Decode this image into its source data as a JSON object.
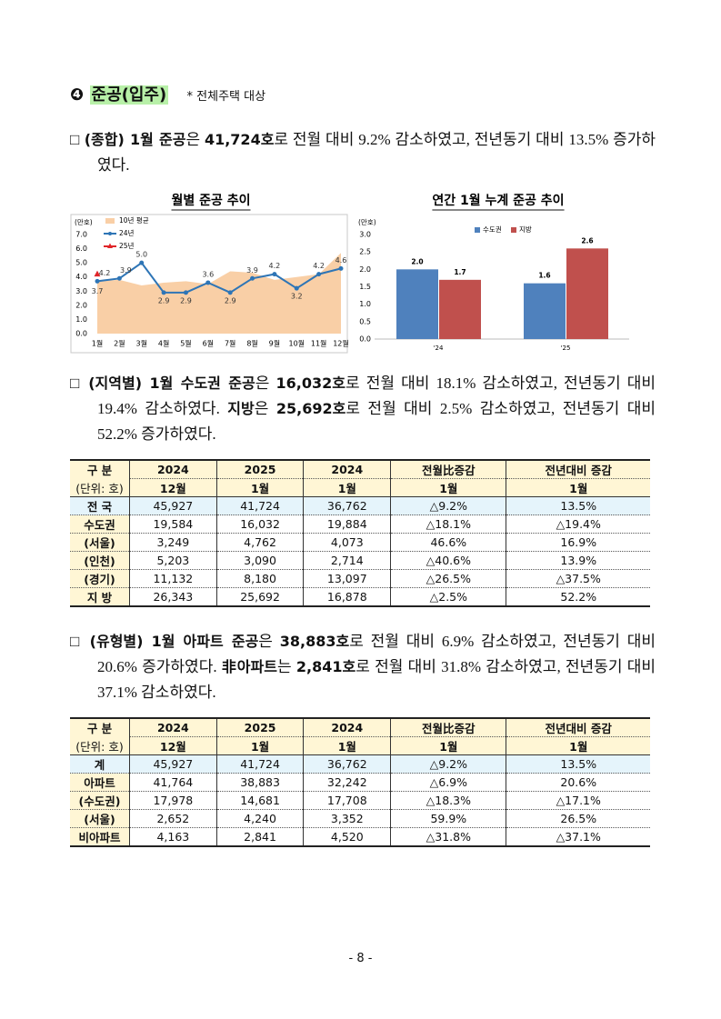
{
  "header": {
    "number": "❹",
    "title": "준공(입주)",
    "note": "* 전체주택 대상"
  },
  "paragraphs": [
    {
      "runs": [
        {
          "text": "□ ",
          "bold": false
        },
        {
          "text": "(종합) 1월 준공",
          "bold": true
        },
        {
          "text": "은 ",
          "bold": false
        },
        {
          "text": "41,724호",
          "bold": true
        },
        {
          "text": "로 전월 대비 9.2% 감소하였고, 전년동기 대비 13.5% 증가하였다.",
          "bold": false
        }
      ]
    },
    {
      "runs": [
        {
          "text": "□ ",
          "bold": false
        },
        {
          "text": "(지역별) 1월 수도권 준공",
          "bold": true
        },
        {
          "text": "은 ",
          "bold": false
        },
        {
          "text": "16,032호",
          "bold": true
        },
        {
          "text": "로 전월 대비 18.1% 감소하였고, 전년동기 대비 19.4% 감소하였다. ",
          "bold": false
        },
        {
          "text": "지방",
          "bold": true
        },
        {
          "text": "은 ",
          "bold": false
        },
        {
          "text": "25,692호",
          "bold": true
        },
        {
          "text": "로 전월 대비 2.5% 감소하였고, 전년동기 대비 52.2% 증가하였다.",
          "bold": false
        }
      ]
    },
    {
      "runs": [
        {
          "text": "□ ",
          "bold": false
        },
        {
          "text": "(유형별) 1월 아파트 준공",
          "bold": true
        },
        {
          "text": "은 ",
          "bold": false
        },
        {
          "text": "38,883호",
          "bold": true
        },
        {
          "text": "로 전월 대비 6.9% 감소하였고, 전년동기 대비 20.6% 증가하였다. ",
          "bold": false
        },
        {
          "text": "非아파트",
          "bold": true
        },
        {
          "text": "는 ",
          "bold": false
        },
        {
          "text": "2,841호",
          "bold": true
        },
        {
          "text": "로 전월 대비 31.8% 감소하였고, 전년동기 대비 37.1% 감소하였다.",
          "bold": false
        }
      ]
    }
  ],
  "chart_data": [
    {
      "type": "line",
      "title": "월별 준공 추이",
      "y_label": "(만호)",
      "categories": [
        "1월",
        "2월",
        "3월",
        "4월",
        "5월",
        "6월",
        "7월",
        "8월",
        "9월",
        "10월",
        "11월",
        "12월"
      ],
      "ylim": [
        0,
        7
      ],
      "yticks": [
        {
          "value": 0,
          "label": "0.0"
        },
        {
          "value": 1,
          "label": "1.0"
        },
        {
          "value": 2,
          "label": "2.0"
        },
        {
          "value": 3,
          "label": "3.0"
        },
        {
          "value": 4,
          "label": "4.0"
        },
        {
          "value": 5,
          "label": "5.0"
        },
        {
          "value": 6,
          "label": "6.0"
        },
        {
          "value": 7,
          "label": "7.0"
        }
      ],
      "series": [
        {
          "name": "10년 평균",
          "color": "#f9cfa6",
          "kind": "area",
          "values": [
            3.7,
            3.8,
            3.4,
            3.6,
            3.7,
            3.5,
            4.4,
            4.3,
            3.8,
            4.0,
            4.2,
            5.7
          ]
        },
        {
          "name": "24년",
          "color": "#2e75b6",
          "kind": "line",
          "marker": "circle",
          "values": [
            3.7,
            3.9,
            5.0,
            2.9,
            2.9,
            3.6,
            2.9,
            3.9,
            4.2,
            3.2,
            4.2,
            4.6
          ],
          "value_labels": [
            "3.7",
            "3.9",
            "5.0",
            "2.9",
            "2.9",
            "3.6",
            "2.9",
            "3.9",
            "4.2",
            "3.2",
            "4.2",
            "4.6"
          ]
        },
        {
          "name": "25년",
          "color": "#e0262a",
          "kind": "line",
          "marker": "triangle",
          "values": [
            4.2,
            null,
            null,
            null,
            null,
            null,
            null,
            null,
            null,
            null,
            null,
            null
          ],
          "value_labels": [
            "4.2",
            null,
            null,
            null,
            null,
            null,
            null,
            null,
            null,
            null,
            null,
            null
          ]
        }
      ]
    },
    {
      "type": "bar",
      "title": "연간 1월 누계 준공 추이",
      "y_label": "(만호)",
      "categories": [
        "'24",
        "'25"
      ],
      "ylim": [
        0,
        3
      ],
      "yticks": [
        {
          "value": 0,
          "label": "0.0"
        },
        {
          "value": 0.5,
          "label": "0.5"
        },
        {
          "value": 1,
          "label": "1.0"
        },
        {
          "value": 1.5,
          "label": "1.5"
        },
        {
          "value": 2,
          "label": "2.0"
        },
        {
          "value": 2.5,
          "label": "2.5"
        },
        {
          "value": 3,
          "label": "3.0"
        }
      ],
      "series": [
        {
          "name": "수도권",
          "color": "#4f81bd",
          "values": [
            2.0,
            1.6
          ],
          "value_labels": [
            "2.0",
            "1.6"
          ]
        },
        {
          "name": "지방",
          "color": "#c0504d",
          "values": [
            1.7,
            2.6
          ],
          "value_labels": [
            "1.7",
            "2.6"
          ]
        }
      ]
    }
  ],
  "tables": [
    {
      "header": [
        [
          "구 분",
          "2024",
          "2025",
          "2024",
          "전월比증감",
          "전년대비 증감"
        ],
        [
          "(단위: 호)",
          "12월",
          "1월",
          "1월",
          "1월",
          "1월"
        ]
      ],
      "rows": [
        [
          "전 국",
          "45,927",
          "41,724",
          "36,762",
          "△9.2%",
          "13.5%"
        ],
        [
          "수도권",
          "19,584",
          "16,032",
          "19,884",
          "△18.1%",
          "△19.4%"
        ],
        [
          "(서울)",
          "3,249",
          "4,762",
          "4,073",
          "46.6%",
          "16.9%"
        ],
        [
          "(인천)",
          "5,203",
          "3,090",
          "2,714",
          "△40.6%",
          "13.9%"
        ],
        [
          "(경기)",
          "11,132",
          "8,180",
          "13,097",
          "△26.5%",
          "△37.5%"
        ],
        [
          "지 방",
          "26,343",
          "25,692",
          "16,878",
          "△2.5%",
          "52.2%"
        ]
      ]
    },
    {
      "header": [
        [
          "구 분",
          "2024",
          "2025",
          "2024",
          "전월比증감",
          "전년대비 증감"
        ],
        [
          "(단위: 호)",
          "12월",
          "1월",
          "1월",
          "1월",
          "1월"
        ]
      ],
      "rows": [
        [
          "계",
          "45,927",
          "41,724",
          "36,762",
          "△9.2%",
          "13.5%"
        ],
        [
          "아파트",
          "41,764",
          "38,883",
          "32,242",
          "△6.9%",
          "20.6%"
        ],
        [
          "(수도권)",
          "17,978",
          "14,681",
          "17,708",
          "△18.3%",
          "△17.1%"
        ],
        [
          "(서울)",
          "2,652",
          "4,240",
          "3,352",
          "59.9%",
          "26.5%"
        ],
        [
          "비아파트",
          "4,163",
          "2,841",
          "4,520",
          "△31.8%",
          "△37.1%"
        ]
      ]
    }
  ],
  "footer": "- 8 -"
}
